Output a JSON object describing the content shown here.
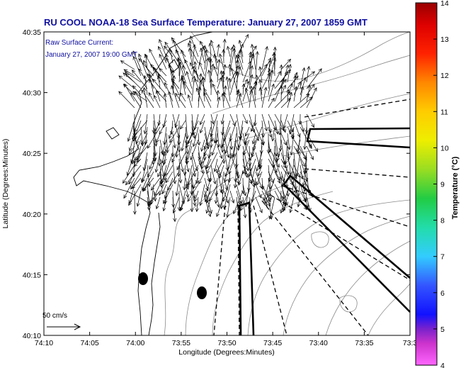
{
  "title": "RU COOL  NOAA-18  Sea Surface Temperature:  January 27, 2007 1859 GMT",
  "annotation": {
    "line1": "Raw Surface Current:",
    "line2": "January 27, 2007 19:00 GMT"
  },
  "scale": {
    "label": "50 cm/s",
    "value_cm_s": 50
  },
  "colors": {
    "title": "#1010a0",
    "contours": "#8a8a8a",
    "coast": "#000000",
    "arrows": "#000000"
  },
  "chart_data": {
    "type": "map",
    "xlabel": "Longitude (Degrees:Minutes)",
    "ylabel": "Latitude (Degrees:Minutes)",
    "x_ticks": [
      "74:10",
      "74:05",
      "74:00",
      "73:55",
      "73:50",
      "73:45",
      "73:40",
      "73:35",
      "73:3"
    ],
    "y_ticks": [
      "40:35",
      "40:30",
      "40:25",
      "40:20",
      "40:15",
      "40:10"
    ],
    "xlim_deg": [
      -74.1667,
      -73.5
    ],
    "ylim_deg": [
      40.1667,
      40.5833
    ],
    "colorbar": {
      "label": "Temperature (°C)",
      "ticks": [
        "14",
        "13",
        "12",
        "11",
        "10",
        "9",
        "8",
        "7",
        "6",
        "5",
        "4"
      ],
      "range": [
        4,
        14
      ]
    },
    "field": {
      "name": "Raw Surface Current",
      "timestamp": "January 27, 2007 19:00 GMT",
      "units": "cm/s"
    }
  }
}
